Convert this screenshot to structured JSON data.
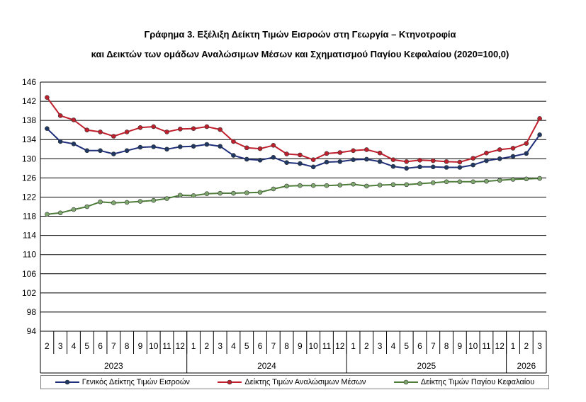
{
  "titles": {
    "line1": "Γράφημα 3. Εξέλιξη Δείκτη Τιμών Εισροών στη Γεωργία – Κτηνοτροφία",
    "line2": "και Δεικτών των ομάδων Αναλώσιμων Μέσων και Σχηματισμού Παγίου Κεφαλαίου (2020=100,0)"
  },
  "chart_data": {
    "type": "line",
    "title": "Γράφημα 3. Εξέλιξη Δείκτη Τιμών Εισροών στη Γεωργία – Κτηνοτροφία και Δεικτών των ομάδων Αναλώσιμων Μέσων και Σχηματισμού Παγίου Κεφαλαίου (2020=100,0)",
    "xlabel": "",
    "ylabel": "",
    "ylim": [
      94,
      146
    ],
    "yticks": [
      94,
      98,
      102,
      106,
      110,
      114,
      118,
      122,
      126,
      130,
      134,
      138,
      142,
      146
    ],
    "grid": "horizontal",
    "legend_position": "bottom",
    "categories": [
      "2",
      "3",
      "4",
      "5",
      "6",
      "7",
      "8",
      "9",
      "10",
      "11",
      "12",
      "1",
      "2",
      "3",
      "4",
      "5",
      "6",
      "7",
      "8",
      "9",
      "10",
      "11",
      "12",
      "1",
      "2",
      "3",
      "4",
      "5",
      "6",
      "7",
      "8",
      "9",
      "10",
      "11",
      "12",
      "1",
      "2",
      "3"
    ],
    "year_groups": [
      {
        "label": "2023",
        "start": 0,
        "count": 11
      },
      {
        "label": "2024",
        "start": 11,
        "count": 12
      },
      {
        "label": "2025",
        "start": 23,
        "count": 12
      },
      {
        "label": "2026",
        "start": 35,
        "count": 3
      }
    ],
    "series": [
      {
        "name": "Γενικός Δείκτης Τιμών Εισροών",
        "color": "#1f2f7a",
        "marker": "#1f3864",
        "values": [
          136.3,
          133.6,
          133.1,
          131.7,
          131.7,
          131.0,
          131.7,
          132.4,
          132.5,
          132.0,
          132.5,
          132.6,
          133.0,
          132.6,
          130.7,
          129.9,
          129.7,
          130.3,
          129.2,
          129.0,
          128.3,
          129.3,
          129.4,
          129.8,
          129.9,
          129.4,
          128.4,
          128.0,
          128.3,
          128.3,
          128.2,
          128.2,
          128.7,
          129.6,
          130.0,
          130.5,
          131.1,
          135.0
        ]
      },
      {
        "name": "Δείκτης Τιμών Αναλώσιμων Μέσων",
        "color": "#c0202e",
        "marker": "#c0202e",
        "values": [
          142.8,
          139.0,
          138.1,
          136.0,
          135.6,
          134.7,
          135.6,
          136.5,
          136.7,
          135.6,
          136.2,
          136.3,
          136.7,
          136.1,
          133.6,
          132.3,
          132.1,
          132.8,
          131.0,
          130.8,
          129.8,
          131.1,
          131.3,
          131.7,
          131.9,
          131.2,
          129.8,
          129.4,
          129.7,
          129.6,
          129.4,
          129.3,
          130.1,
          131.2,
          131.9,
          132.2,
          133.2,
          138.4
        ]
      },
      {
        "name": "Δείκτης Τιμών Παγίου Κεφαλαίου",
        "color": "#4e7d3a",
        "marker": "#7fa86e",
        "values": [
          118.4,
          118.7,
          119.4,
          120.0,
          121.0,
          120.8,
          120.9,
          121.1,
          121.3,
          121.7,
          122.4,
          122.3,
          122.7,
          122.8,
          122.8,
          122.9,
          123.0,
          123.7,
          124.3,
          124.4,
          124.4,
          124.4,
          124.5,
          124.7,
          124.3,
          124.5,
          124.6,
          124.6,
          124.8,
          125.0,
          125.2,
          125.2,
          125.2,
          125.3,
          125.5,
          125.7,
          125.8,
          125.9
        ]
      }
    ]
  }
}
